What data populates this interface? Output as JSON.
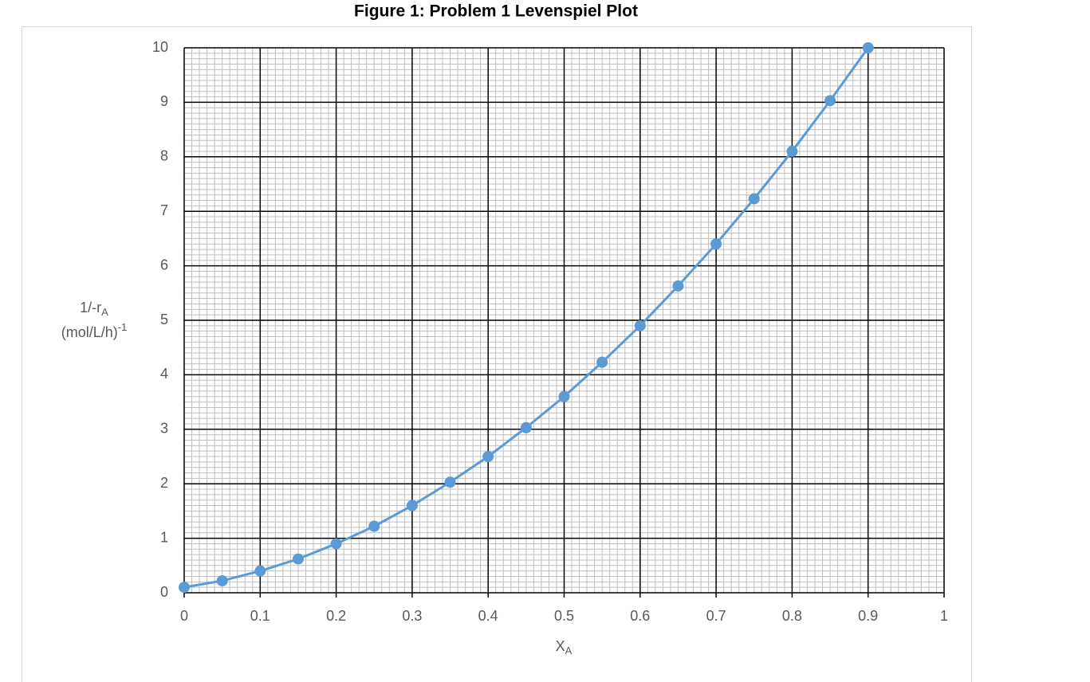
{
  "chart_data": {
    "type": "line",
    "title": "Figure 1: Problem 1 Levenspiel Plot",
    "xlabel": {
      "text": "X",
      "sub": "A"
    },
    "ylabel": {
      "line1": "1/-r",
      "line1_sub": "A",
      "line2": "(mol/L/h)",
      "line2_sup": "-1"
    },
    "x": [
      0,
      0.05,
      0.1,
      0.15,
      0.2,
      0.25,
      0.3,
      0.35,
      0.4,
      0.45,
      0.5,
      0.55,
      0.6,
      0.65,
      0.7,
      0.75,
      0.8,
      0.85,
      0.9
    ],
    "series": [
      {
        "color": "#5b9bd5",
        "values": [
          0.1,
          0.22,
          0.4,
          0.62,
          0.9,
          1.22,
          1.6,
          2.03,
          2.5,
          3.03,
          3.6,
          4.23,
          4.9,
          5.63,
          6.4,
          7.23,
          8.1,
          9.03,
          10
        ]
      }
    ],
    "xlim": [
      0,
      1
    ],
    "xticks": [
      0,
      0.1,
      0.2,
      0.3,
      0.4,
      0.5,
      0.6,
      0.7,
      0.8,
      0.9,
      1
    ],
    "ylim": [
      0,
      10
    ],
    "yticks": [
      0,
      1,
      2,
      3,
      4,
      5,
      6,
      7,
      8,
      9,
      10
    ],
    "grid": true,
    "minor_divisions": 10
  }
}
